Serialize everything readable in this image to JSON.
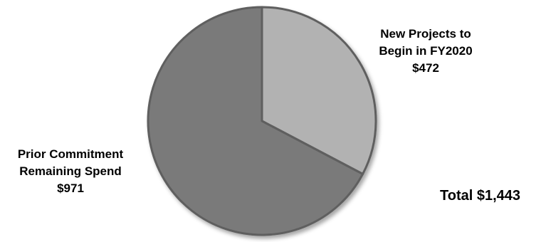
{
  "chart_data": {
    "type": "pie",
    "title": "",
    "slices": [
      {
        "label_lines": [
          "New Projects to",
          "Begin in FY2020"
        ],
        "value_label": "$472",
        "value": 472,
        "color": "#b2b2b2"
      },
      {
        "label_lines": [
          "Prior Commitment",
          "Remaining Spend"
        ],
        "value_label": "$971",
        "value": 971,
        "color": "#7a7a7a"
      }
    ],
    "total_label": "Total $1,443",
    "total": 1443,
    "start_angle": "12 o'clock",
    "direction": "clockwise",
    "legend": "none"
  }
}
